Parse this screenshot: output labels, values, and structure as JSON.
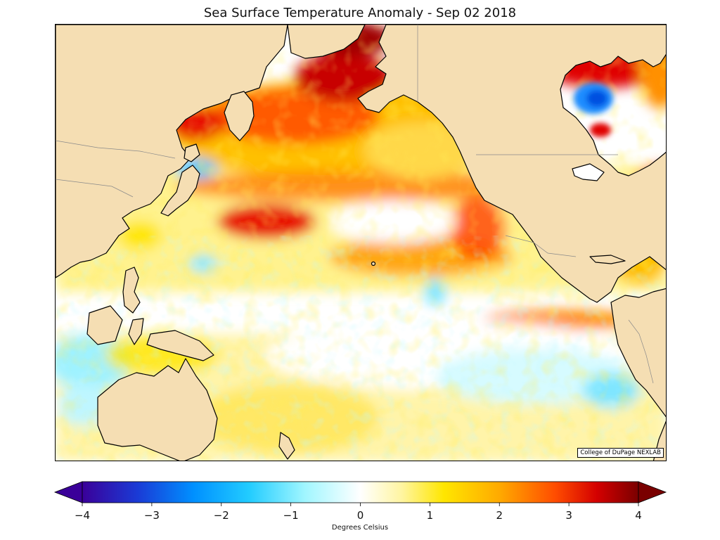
{
  "title": "Sea Surface Temperature Anomaly - Sep 02 2018",
  "credit": "College of DuPage NEXLAB",
  "land_color": "#f5deb3",
  "colorbar": {
    "label": "Degrees Celsius",
    "min": -4,
    "max": 4,
    "ticks": [
      "−4",
      "−3",
      "−2",
      "−1",
      "0",
      "1",
      "2",
      "3",
      "4"
    ],
    "extend": "both",
    "stops": [
      {
        "v": -4,
        "color": "#3a0099"
      },
      {
        "v": -3.2,
        "color": "#1a3bd6"
      },
      {
        "v": -2.4,
        "color": "#0090ff"
      },
      {
        "v": -1.6,
        "color": "#22ccff"
      },
      {
        "v": -0.8,
        "color": "#a0f6ff"
      },
      {
        "v": 0,
        "color": "#ffffff"
      },
      {
        "v": 0.6,
        "color": "#fff5a0"
      },
      {
        "v": 1.2,
        "color": "#ffe600"
      },
      {
        "v": 2.0,
        "color": "#ffaa00"
      },
      {
        "v": 2.8,
        "color": "#ff4d00"
      },
      {
        "v": 3.4,
        "color": "#d40000"
      },
      {
        "v": 4,
        "color": "#7a0000"
      }
    ]
  }
}
